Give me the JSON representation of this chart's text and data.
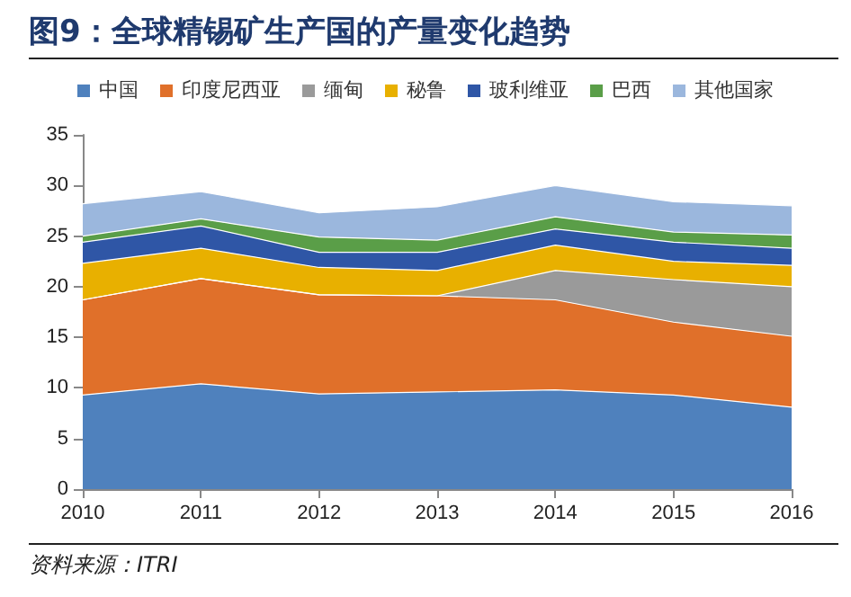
{
  "chart_data": {
    "type": "area",
    "title": "图9：全球精锡矿生产国的产量变化趋势",
    "categories": [
      "2010",
      "2011",
      "2012",
      "2013",
      "2014",
      "2015",
      "2016"
    ],
    "stacked": true,
    "series": [
      {
        "name": "中国",
        "color": "#4f81bd",
        "values": [
          9.3,
          10.4,
          9.4,
          9.6,
          9.8,
          9.3,
          8.1
        ]
      },
      {
        "name": "印度尼西亚",
        "color": "#e0702a",
        "values": [
          9.4,
          10.4,
          9.8,
          9.5,
          8.9,
          7.2,
          7.0
        ]
      },
      {
        "name": "缅甸",
        "color": "#9a9a9a",
        "values": [
          0,
          0,
          0,
          0,
          2.9,
          4.2,
          4.9
        ]
      },
      {
        "name": "秘鲁",
        "color": "#e8b000",
        "values": [
          3.6,
          3.0,
          2.7,
          2.5,
          2.5,
          1.8,
          2.1
        ]
      },
      {
        "name": "玻利维亚",
        "color": "#2f56a6",
        "values": [
          2.1,
          2.2,
          1.5,
          1.8,
          1.6,
          1.9,
          1.7
        ]
      },
      {
        "name": "巴西",
        "color": "#5a9e48",
        "values": [
          0.6,
          0.7,
          1.5,
          1.2,
          1.2,
          1.0,
          1.3
        ]
      },
      {
        "name": "其他国家",
        "color": "#9bb7dd",
        "values": [
          3.2,
          2.7,
          2.4,
          3.3,
          3.1,
          3.0,
          2.9
        ]
      }
    ],
    "ylim": [
      0,
      35
    ],
    "yticks": [
      0,
      5,
      10,
      15,
      20,
      25,
      30,
      35
    ],
    "grid": false,
    "legend": "top",
    "marker": "none",
    "annotations": [
      "资料来源：ITRI"
    ]
  }
}
